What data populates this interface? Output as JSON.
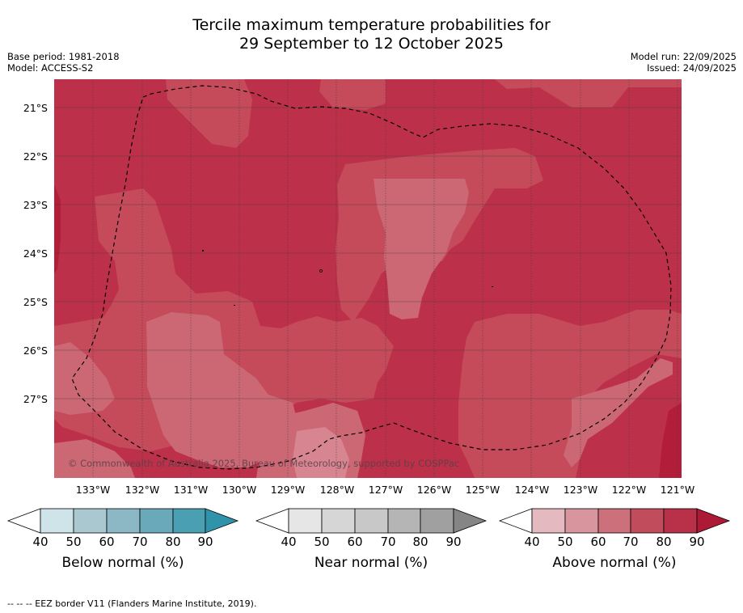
{
  "title_line1": "Tercile maximum temperature probabilities for",
  "title_line2": "29 September to 12 October 2025",
  "left_meta": {
    "base_period": "Base period: 1981-2018",
    "model": "Model: ACCESS-S2"
  },
  "right_meta": {
    "model_run": "Model run: 22/09/2025",
    "issued": "Issued: 24/09/2025"
  },
  "lat_labels": [
    "21°S",
    "22°S",
    "23°S",
    "24°S",
    "25°S",
    "26°S",
    "27°S"
  ],
  "lon_labels": [
    "133°W",
    "132°W",
    "131°W",
    "130°W",
    "129°W",
    "128°W",
    "127°W",
    "126°W",
    "125°W",
    "124°W",
    "123°W",
    "122°W",
    "121°W"
  ],
  "copyright": "© Commonwealth of Australia 2025, Bureau of Meteorology, supported by COSPPac",
  "colorbars": [
    {
      "title": "Below normal (%)",
      "ticks": [
        "40",
        "50",
        "60",
        "70",
        "80",
        "90"
      ],
      "colors": [
        "#cfe4e9",
        "#a9c8cf",
        "#8bb8c4",
        "#6aa9b9",
        "#4a9fb2",
        "#2f93aa"
      ]
    },
    {
      "title": "Near normal (%)",
      "ticks": [
        "40",
        "50",
        "60",
        "70",
        "80",
        "90"
      ],
      "colors": [
        "#e6e6e6",
        "#d6d6d6",
        "#c8c8c8",
        "#b5b5b5",
        "#a0a0a0",
        "#858585"
      ]
    },
    {
      "title": "Above normal (%)",
      "ticks": [
        "40",
        "50",
        "60",
        "70",
        "80",
        "90"
      ],
      "colors": [
        "#e5b9c0",
        "#d9959e",
        "#cc707b",
        "#c14d5c",
        "#b93148",
        "#ad1a35"
      ]
    }
  ],
  "footnote": "--  --  -- EEZ border V11 (Flanders Marine Institute, 2019).",
  "colors": {
    "above_90": "#b21e3a",
    "above_80": "#bc3149",
    "above_70": "#c54a5a",
    "above_60": "#cc6774",
    "above_50": "#d78591",
    "grid": "#3b3b3b"
  }
}
